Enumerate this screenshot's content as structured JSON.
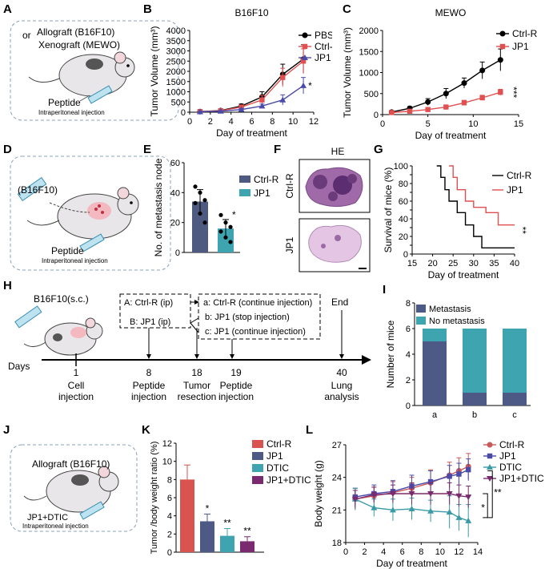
{
  "panels": {
    "a": "A",
    "b": "B",
    "c": "C",
    "d": "D",
    "e": "E",
    "f": "F",
    "g": "G",
    "h": "H",
    "i": "I",
    "j": "J",
    "k": "K",
    "l": "L"
  },
  "schematic_a": {
    "or_text": "or",
    "line1": "Allograft (B16F10)",
    "line2": "Xenograft (MEWO)",
    "peptide": "Peptide",
    "route": "Intraperitoneal injection"
  },
  "schematic_d": {
    "cells": "(B16F10)",
    "peptide": "Peptide",
    "route": "Intraperitoneal injection"
  },
  "schematic_j": {
    "graft": "Allograft (B16F10)",
    "drug": "JP1+DTIC",
    "route": "Intraperitoneal injection"
  },
  "colors": {
    "black": "#000000",
    "red": "#e05050",
    "blue": "#4a4aa8",
    "navy": "#4f5a80",
    "teal": "#3ea4b0",
    "crimson": "#d9534f",
    "slate": "#4d5a86",
    "purple": "#7a2a6e"
  },
  "chart_data": [
    {
      "id": "B",
      "type": "line",
      "title": "B16F10",
      "xlabel": "Day of treatment",
      "ylabel": "Tumor Volume (mm³)",
      "xlim": [
        0,
        12
      ],
      "ylim": [
        0,
        4000
      ],
      "xticks": [
        0,
        2,
        4,
        6,
        8,
        10,
        12
      ],
      "yticks": [
        0,
        500,
        1000,
        1500,
        2000,
        2500,
        3000,
        3500,
        4000
      ],
      "x": [
        1,
        3,
        5,
        7,
        9,
        11
      ],
      "series": [
        {
          "name": "PBS",
          "values": [
            30,
            80,
            300,
            750,
            1850,
            2600
          ],
          "err": [
            30,
            40,
            100,
            250,
            500,
            700
          ]
        },
        {
          "name": "Ctrl-R",
          "values": [
            30,
            70,
            250,
            600,
            1700,
            2500
          ],
          "err": [
            30,
            30,
            80,
            220,
            450,
            600
          ]
        },
        {
          "name": "JP1",
          "values": [
            20,
            50,
            130,
            300,
            600,
            1300
          ],
          "err": [
            20,
            25,
            50,
            100,
            250,
            400
          ]
        }
      ],
      "annotation": "*"
    },
    {
      "id": "C",
      "type": "line",
      "title": "MEWO",
      "xlabel": "Day of treatment",
      "ylabel": "Tumor Volume (mm³)",
      "xlim": [
        0,
        15
      ],
      "ylim": [
        0,
        2000
      ],
      "xticks": [
        0,
        5,
        10,
        15
      ],
      "yticks": [
        0,
        500,
        1000,
        1500,
        2000
      ],
      "x": [
        1,
        3,
        5,
        7,
        9,
        11,
        13
      ],
      "series": [
        {
          "name": "Ctrl-R",
          "values": [
            60,
            150,
            300,
            500,
            750,
            1050,
            1300
          ],
          "err": [
            20,
            40,
            80,
            120,
            120,
            200,
            260
          ]
        },
        {
          "name": "JP1",
          "values": [
            50,
            80,
            120,
            180,
            280,
            400,
            530
          ],
          "err": [
            15,
            25,
            40,
            40,
            60,
            60,
            70
          ]
        }
      ],
      "annotation": "***"
    },
    {
      "id": "E",
      "type": "bar",
      "xlabel": "",
      "ylabel": "No. of metastasis node",
      "ylim": [
        0,
        60
      ],
      "yticks": [
        0,
        20,
        40,
        60
      ],
      "categories": [
        "Ctrl-R",
        "JP1"
      ],
      "values": [
        34,
        16
      ],
      "err": [
        8,
        6
      ],
      "points": [
        [
          44,
          40,
          35,
          33,
          26,
          20
        ],
        [
          25,
          20,
          17,
          14,
          10,
          7
        ]
      ],
      "annotation": "*"
    },
    {
      "id": "G",
      "type": "line",
      "xlabel": "Day of treatment",
      "ylabel": "Survival of mice (%)",
      "xlim": [
        15,
        40
      ],
      "ylim": [
        0,
        100
      ],
      "xticks": [
        15,
        20,
        25,
        30,
        35,
        40
      ],
      "yticks": [
        0,
        10,
        20,
        30,
        40,
        50,
        60,
        70,
        80,
        90,
        100
      ],
      "series": [
        {
          "name": "Ctrl-R",
          "x": [
            21,
            22,
            23,
            24,
            26,
            28,
            30,
            32
          ],
          "values": [
            100,
            87,
            73,
            60,
            47,
            33,
            20,
            7
          ]
        },
        {
          "name": "JP1",
          "x": [
            24,
            25,
            26,
            28,
            30,
            33,
            36
          ],
          "values": [
            100,
            87,
            73,
            60,
            53,
            47,
            33
          ]
        }
      ],
      "xend": 40,
      "annotation": "**"
    },
    {
      "id": "I",
      "type": "bar",
      "stacked": true,
      "xlabel": "",
      "ylabel": "Number of mice",
      "ylim": [
        0,
        8
      ],
      "yticks": [
        0,
        2,
        4,
        6,
        8
      ],
      "categories": [
        "a",
        "b",
        "c"
      ],
      "series": [
        {
          "name": "Metastasis",
          "values": [
            5,
            1,
            1
          ]
        },
        {
          "name": "No metastasis",
          "values": [
            1,
            5,
            5
          ]
        }
      ]
    },
    {
      "id": "K",
      "type": "bar",
      "xlabel": "",
      "ylabel": "Tumor /body weight ratio (%)",
      "ylim": [
        0,
        12
      ],
      "yticks": [
        0,
        2,
        4,
        6,
        8,
        10,
        12
      ],
      "categories": [
        "Ctrl-R",
        "JP1",
        "DTIC",
        "JP1+DTIC"
      ],
      "values": [
        8.0,
        3.4,
        1.8,
        1.2
      ],
      "err": [
        1.6,
        0.8,
        0.8,
        0.5
      ],
      "annotations": [
        "",
        "*",
        "**",
        "**"
      ]
    },
    {
      "id": "L",
      "type": "line",
      "xlabel": "Day of treatment",
      "ylabel": "Body weight (g)",
      "xlim": [
        0,
        14
      ],
      "ylim": [
        18,
        27
      ],
      "xticks": [
        0,
        2,
        4,
        6,
        8,
        10,
        12,
        14
      ],
      "yticks": [
        18,
        21,
        24,
        27
      ],
      "x": [
        1,
        3,
        5,
        7,
        9,
        11,
        12,
        13
      ],
      "series": [
        {
          "name": "Ctrl-R",
          "values": [
            22.0,
            22.3,
            22.6,
            23.0,
            23.5,
            24.2,
            24.6,
            25.0
          ],
          "err": [
            1,
            0.8,
            1,
            1,
            1.2,
            1.2,
            1.2,
            1.2
          ]
        },
        {
          "name": "JP1",
          "values": [
            22.2,
            22.5,
            22.7,
            23.2,
            23.6,
            24.1,
            24.3,
            24.7
          ],
          "err": [
            0.8,
            0.8,
            1,
            1,
            1,
            1,
            1,
            1
          ]
        },
        {
          "name": "DTIC",
          "values": [
            22.0,
            21.2,
            21.0,
            21.1,
            20.9,
            20.8,
            20.3,
            20.0
          ],
          "err": [
            1,
            0.8,
            1,
            1,
            1,
            1.5,
            1.2,
            1.5
          ]
        },
        {
          "name": "JP1+DTIC",
          "values": [
            22.0,
            22.4,
            22.5,
            22.5,
            22.5,
            22.5,
            22.3,
            22.2
          ],
          "err": [
            0.8,
            0.7,
            0.8,
            1,
            1,
            1,
            1,
            1
          ]
        }
      ],
      "annotations": [
        "*",
        "**"
      ]
    }
  ],
  "panel_f": {
    "title": "HE",
    "row1": "Ctrl-R",
    "row2": "JP1"
  },
  "timeline": {
    "cells": "B16F10(s.c.)",
    "days_label": "Days",
    "events": [
      {
        "day": "1",
        "label1": "Cell",
        "label2": "injection"
      },
      {
        "day": "8",
        "label1": "Peptide",
        "label2": "injection"
      },
      {
        "day": "18",
        "label1": "Tumor",
        "label2": "resection"
      },
      {
        "day": "19",
        "label1": "Peptide",
        "label2": "injection"
      },
      {
        "day": "40",
        "label1": "Lung",
        "label2": "analysis"
      }
    ],
    "groups": [
      "A: Ctrl-R (ip)",
      "B: JP1 (ip)"
    ],
    "subgroups": [
      "a: Ctrl-R (continue injection)",
      "b: JP1 (stop injection)",
      "c: JP1 (continue injection)"
    ],
    "end": "End"
  }
}
